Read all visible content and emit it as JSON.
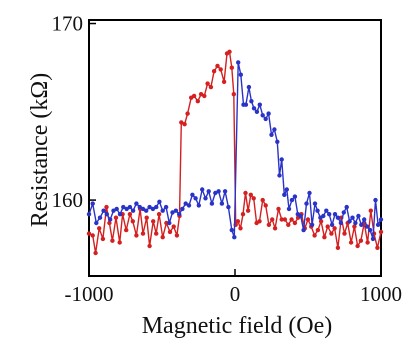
{
  "chart_data": {
    "type": "line",
    "title": "",
    "xlabel": "Magnetic field (Oe)",
    "ylabel": "Resistance (kΩ)",
    "xlim": [
      -1000,
      1000
    ],
    "ylim": [
      155.7,
      170.2
    ],
    "xticks": [
      -1000,
      0,
      1000
    ],
    "xtick_labels": [
      "-1000",
      "0",
      "1000"
    ],
    "yticks": [
      160,
      170
    ],
    "ytick_labels": [
      "160",
      "170"
    ],
    "grid": false,
    "legend": "none",
    "series": [
      {
        "color": "#d42020",
        "marker": "dot",
        "points": [
          [
            -1000,
            158.1
          ],
          [
            -975,
            158.0
          ],
          [
            -955,
            157.0
          ],
          [
            -930,
            158.4
          ],
          [
            -905,
            157.8
          ],
          [
            -880,
            159.6
          ],
          [
            -860,
            158.7
          ],
          [
            -840,
            157.7
          ],
          [
            -815,
            159.0
          ],
          [
            -790,
            157.6
          ],
          [
            -770,
            159.2
          ],
          [
            -745,
            158.3
          ],
          [
            -720,
            159.2
          ],
          [
            -700,
            158.8
          ],
          [
            -675,
            158.0
          ],
          [
            -650,
            159.5
          ],
          [
            -630,
            158.1
          ],
          [
            -605,
            159.0
          ],
          [
            -585,
            157.4
          ],
          [
            -560,
            158.8
          ],
          [
            -540,
            158.1
          ],
          [
            -520,
            159.2
          ],
          [
            -495,
            157.9
          ],
          [
            -470,
            158.7
          ],
          [
            -445,
            158.2
          ],
          [
            -420,
            158.5
          ],
          [
            -398,
            158.0
          ],
          [
            -380,
            159.1
          ],
          [
            -368,
            164.4
          ],
          [
            -345,
            164.3
          ],
          [
            -325,
            164.9
          ],
          [
            -300,
            165.8
          ],
          [
            -280,
            165.9
          ],
          [
            -255,
            165.6
          ],
          [
            -232,
            166.0
          ],
          [
            -210,
            165.9
          ],
          [
            -188,
            166.6
          ],
          [
            -165,
            166.4
          ],
          [
            -143,
            167.3
          ],
          [
            -120,
            167.6
          ],
          [
            -98,
            167.4
          ],
          [
            -75,
            166.7
          ],
          [
            -55,
            168.3
          ],
          [
            -38,
            168.4
          ],
          [
            -22,
            167.5
          ],
          [
            -8,
            166.0
          ],
          [
            5,
            158.6
          ],
          [
            20,
            158.8
          ],
          [
            38,
            158.4
          ],
          [
            55,
            159.2
          ],
          [
            72,
            160.4
          ],
          [
            90,
            159.4
          ],
          [
            108,
            160.3
          ],
          [
            128,
            160.1
          ],
          [
            148,
            158.7
          ],
          [
            168,
            158.8
          ],
          [
            190,
            160.0
          ],
          [
            210,
            159.7
          ],
          [
            232,
            158.6
          ],
          [
            255,
            158.9
          ],
          [
            275,
            158.4
          ],
          [
            298,
            159.5
          ],
          [
            320,
            158.9
          ],
          [
            342,
            158.9
          ],
          [
            365,
            158.6
          ],
          [
            388,
            158.9
          ],
          [
            410,
            158.7
          ],
          [
            432,
            159.0
          ],
          [
            455,
            159.2
          ],
          [
            478,
            158.4
          ],
          [
            500,
            158.9
          ],
          [
            522,
            158.5
          ],
          [
            545,
            158.0
          ],
          [
            568,
            158.3
          ],
          [
            590,
            158.8
          ],
          [
            612,
            157.9
          ],
          [
            635,
            158.5
          ],
          [
            660,
            158.1
          ],
          [
            682,
            158.4
          ],
          [
            705,
            157.3
          ],
          [
            728,
            159.0
          ],
          [
            750,
            158.1
          ],
          [
            772,
            158.7
          ],
          [
            795,
            157.6
          ],
          [
            818,
            158.5
          ],
          [
            840,
            157.4
          ],
          [
            862,
            157.7
          ],
          [
            885,
            158.7
          ],
          [
            908,
            157.6
          ],
          [
            930,
            159.4
          ],
          [
            952,
            158.1
          ],
          [
            975,
            157.3
          ],
          [
            1000,
            158.2
          ]
        ]
      },
      {
        "color": "#2a33c8",
        "marker": "dot",
        "points": [
          [
            -1000,
            159.2
          ],
          [
            -975,
            159.8
          ],
          [
            -950,
            158.7
          ],
          [
            -925,
            159.0
          ],
          [
            -900,
            159.4
          ],
          [
            -878,
            159.2
          ],
          [
            -855,
            158.9
          ],
          [
            -832,
            159.4
          ],
          [
            -810,
            159.5
          ],
          [
            -788,
            159.2
          ],
          [
            -765,
            159.6
          ],
          [
            -742,
            159.5
          ],
          [
            -720,
            159.6
          ],
          [
            -698,
            159.4
          ],
          [
            -675,
            159.8
          ],
          [
            -652,
            159.6
          ],
          [
            -630,
            159.5
          ],
          [
            -608,
            159.4
          ],
          [
            -585,
            159.6
          ],
          [
            -562,
            159.5
          ],
          [
            -540,
            159.6
          ],
          [
            -518,
            159.9
          ],
          [
            -495,
            159.4
          ],
          [
            -472,
            159.6
          ],
          [
            -450,
            158.7
          ],
          [
            -428,
            159.3
          ],
          [
            -405,
            159.4
          ],
          [
            -382,
            159.2
          ],
          [
            -360,
            159.5
          ],
          [
            -338,
            159.8
          ],
          [
            -315,
            159.7
          ],
          [
            -292,
            160.3
          ],
          [
            -270,
            160.1
          ],
          [
            -248,
            159.7
          ],
          [
            -225,
            160.6
          ],
          [
            -202,
            160.1
          ],
          [
            -180,
            160.5
          ],
          [
            -158,
            159.8
          ],
          [
            -135,
            160.4
          ],
          [
            -112,
            160.5
          ],
          [
            -90,
            159.8
          ],
          [
            -68,
            160.5
          ],
          [
            -45,
            159.6
          ],
          [
            -22,
            158.3
          ],
          [
            -5,
            157.9
          ],
          [
            22,
            167.8
          ],
          [
            40,
            167.1
          ],
          [
            58,
            165.4
          ],
          [
            75,
            165.4
          ],
          [
            95,
            166.4
          ],
          [
            112,
            165.6
          ],
          [
            130,
            165.2
          ],
          [
            150,
            165.0
          ],
          [
            170,
            165.4
          ],
          [
            190,
            164.8
          ],
          [
            210,
            164.6
          ],
          [
            230,
            164.9
          ],
          [
            250,
            163.7
          ],
          [
            270,
            164.0
          ],
          [
            290,
            163.3
          ],
          [
            305,
            161.4
          ],
          [
            320,
            162.3
          ],
          [
            338,
            160.3
          ],
          [
            355,
            160.6
          ],
          [
            370,
            159.5
          ],
          [
            390,
            160.0
          ],
          [
            410,
            160.2
          ],
          [
            430,
            159.2
          ],
          [
            450,
            159.1
          ],
          [
            470,
            158.3
          ],
          [
            490,
            159.8
          ],
          [
            510,
            160.4
          ],
          [
            528,
            158.6
          ],
          [
            548,
            159.8
          ],
          [
            565,
            159.4
          ],
          [
            585,
            159.0
          ],
          [
            605,
            159.1
          ],
          [
            625,
            159.4
          ],
          [
            645,
            159.2
          ],
          [
            665,
            158.6
          ],
          [
            685,
            159.2
          ],
          [
            705,
            159.0
          ],
          [
            725,
            158.7
          ],
          [
            745,
            159.3
          ],
          [
            765,
            159.6
          ],
          [
            785,
            158.8
          ],
          [
            805,
            159.0
          ],
          [
            825,
            158.7
          ],
          [
            845,
            159.1
          ],
          [
            865,
            158.6
          ],
          [
            885,
            158.9
          ],
          [
            905,
            158.5
          ],
          [
            925,
            158.3
          ],
          [
            945,
            157.8
          ],
          [
            962,
            160.0
          ],
          [
            980,
            158.6
          ],
          [
            1000,
            158.9
          ]
        ]
      }
    ]
  }
}
